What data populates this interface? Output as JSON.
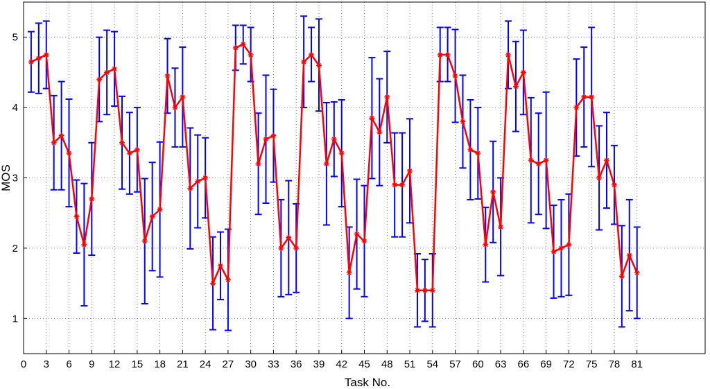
{
  "chart_data": {
    "type": "line",
    "title": "",
    "xlabel": "Task No.",
    "ylabel": "MOS",
    "xlim": [
      0,
      90
    ],
    "ylim": [
      0.5,
      5.5
    ],
    "xticks": [
      0,
      3,
      6,
      9,
      12,
      15,
      18,
      21,
      24,
      27,
      30,
      33,
      36,
      39,
      42,
      45,
      48,
      51,
      54,
      57,
      60,
      63,
      66,
      69,
      72,
      75,
      78,
      81
    ],
    "yticks": [
      1,
      2,
      3,
      4,
      5
    ],
    "grid": true,
    "line_color": "#ff0000",
    "errorbar_color": "#0000ff",
    "series": [
      {
        "x": [
          1,
          2,
          3,
          4,
          5,
          6,
          7,
          8,
          9,
          10,
          11,
          12,
          13,
          14,
          15,
          16,
          17,
          18,
          19,
          20,
          21,
          22,
          23,
          24,
          25,
          26,
          27,
          28,
          29,
          30,
          31,
          32,
          33,
          34,
          35,
          36,
          37,
          38,
          39,
          40,
          41,
          42,
          43,
          44,
          45,
          46,
          47,
          48,
          49,
          50,
          51,
          52,
          53,
          54,
          55,
          56,
          57,
          58,
          59,
          60,
          61,
          62,
          63,
          64,
          65,
          66,
          67,
          68,
          69,
          70,
          71,
          72,
          73,
          74,
          75,
          76,
          77,
          78,
          79,
          80,
          81
        ],
        "values": [
          4.65,
          4.7,
          4.75,
          3.5,
          3.6,
          3.35,
          2.45,
          2.05,
          2.7,
          4.4,
          4.5,
          4.55,
          3.5,
          3.35,
          3.4,
          2.1,
          2.45,
          2.55,
          4.45,
          4.0,
          4.15,
          2.85,
          2.95,
          3.0,
          1.5,
          1.75,
          1.55,
          4.85,
          4.9,
          4.75,
          3.2,
          3.55,
          3.6,
          2.0,
          2.15,
          2.0,
          4.65,
          4.75,
          4.6,
          3.2,
          3.55,
          3.35,
          1.65,
          2.2,
          2.1,
          3.85,
          3.65,
          4.15,
          2.9,
          2.9,
          3.1,
          1.4,
          1.4,
          1.4,
          4.75,
          4.75,
          4.45,
          3.8,
          3.4,
          3.35,
          2.05,
          2.8,
          2.3,
          4.75,
          4.3,
          4.5,
          3.25,
          3.2,
          3.25,
          1.95,
          2.0,
          2.05,
          4.0,
          4.15,
          4.15,
          3.0,
          3.25,
          2.9,
          1.6,
          1.9,
          1.65
        ],
        "err_low": [
          4.22,
          4.2,
          4.27,
          2.83,
          2.83,
          2.59,
          1.93,
          1.18,
          1.9,
          3.8,
          3.9,
          4.02,
          2.84,
          2.77,
          2.8,
          1.21,
          1.68,
          1.59,
          3.92,
          3.44,
          3.44,
          1.99,
          2.29,
          2.43,
          0.84,
          1.27,
          0.83,
          4.53,
          4.62,
          4.37,
          2.48,
          2.64,
          2.94,
          1.31,
          1.34,
          1.37,
          4.0,
          4.37,
          3.95,
          2.33,
          3.02,
          2.59,
          1.0,
          1.42,
          1.31,
          2.99,
          2.89,
          3.5,
          2.16,
          2.16,
          2.36,
          0.88,
          0.96,
          0.88,
          4.37,
          4.37,
          3.79,
          3.14,
          2.69,
          2.7,
          1.52,
          2.08,
          1.61,
          4.27,
          3.66,
          3.9,
          2.36,
          2.48,
          2.28,
          1.29,
          1.31,
          1.33,
          3.31,
          3.44,
          3.16,
          2.26,
          2.57,
          2.34,
          0.88,
          1.11,
          1.0
        ],
        "err_high": [
          5.08,
          5.2,
          5.23,
          4.17,
          4.37,
          4.12,
          2.97,
          2.92,
          3.5,
          5.0,
          5.1,
          5.08,
          4.16,
          3.93,
          4.0,
          2.99,
          3.22,
          3.51,
          4.98,
          4.56,
          4.86,
          3.71,
          3.61,
          3.57,
          2.16,
          2.23,
          2.27,
          5.17,
          5.17,
          5.14,
          3.92,
          4.46,
          4.26,
          2.69,
          2.96,
          2.63,
          5.3,
          5.14,
          5.26,
          4.07,
          4.08,
          4.11,
          2.3,
          2.98,
          2.89,
          4.71,
          4.41,
          4.8,
          3.64,
          3.64,
          3.84,
          1.92,
          1.84,
          1.92,
          5.14,
          5.14,
          5.11,
          4.46,
          4.11,
          4.0,
          2.58,
          3.52,
          3.0,
          5.23,
          4.94,
          5.1,
          4.14,
          3.92,
          4.22,
          2.61,
          2.69,
          2.77,
          4.69,
          4.86,
          5.14,
          3.74,
          3.93,
          3.46,
          2.32,
          2.69,
          2.3
        ]
      }
    ]
  }
}
